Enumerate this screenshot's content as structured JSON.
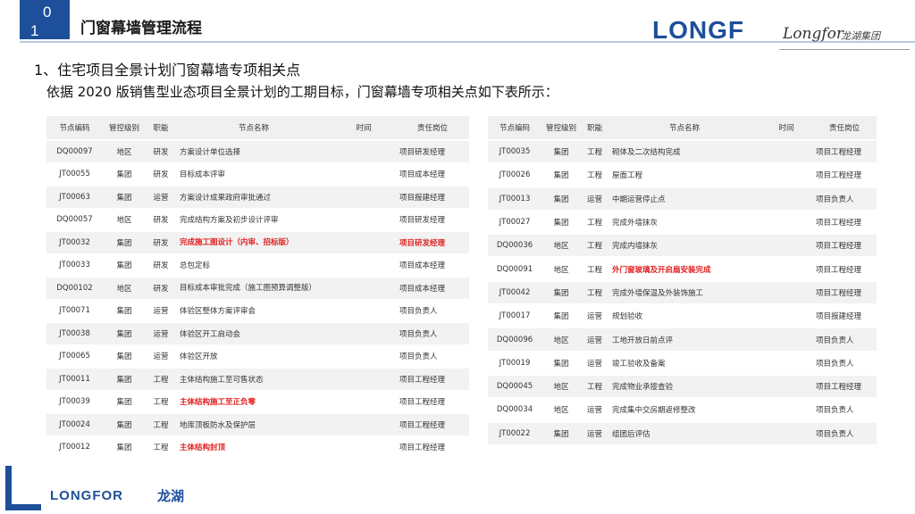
{
  "header": {
    "page_number_line1": "0",
    "page_number_line2": "1",
    "title": "门窗幕墙管理流程",
    "brand": "LONGF",
    "brand_script": "Longfor",
    "brand_cn": "龙湖集团"
  },
  "section_title": "1、住宅项目全景计划门窗幕墙专项相关点",
  "subtitle": "依据 2020 版销售型业态项目全景计划的工期目标，门窗幕墙专项相关点如下表所示：",
  "columns": [
    "节点编码",
    "管控级别",
    "职能",
    "节点名称",
    "时间",
    "责任岗位"
  ],
  "left_rows": [
    {
      "code": "DQ00097",
      "level": "地区",
      "func": "研发",
      "name": "方案设计单位选择",
      "time": "",
      "owner": "项目研发经理",
      "hl": false
    },
    {
      "code": "JT00055",
      "level": "集团",
      "func": "研发",
      "name": "目标成本评审",
      "time": "",
      "owner": "项目成本经理",
      "hl": false
    },
    {
      "code": "JT00063",
      "level": "集团",
      "func": "运营",
      "name": "方案设计成果政府审批通过",
      "time": "",
      "owner": "项目报建经理",
      "hl": false
    },
    {
      "code": "DQ00057",
      "level": "地区",
      "func": "研发",
      "name": "完成结构方案及初步设计评审",
      "time": "",
      "owner": "项目研发经理",
      "hl": false
    },
    {
      "code": "JT00032",
      "level": "集团",
      "func": "研发",
      "name": "完成施工图设计（内审、招标版）",
      "time": "",
      "owner": "项目研发经理",
      "hl": true
    },
    {
      "code": "JT00033",
      "level": "集团",
      "func": "研发",
      "name": "总包定标",
      "time": "",
      "owner": "项目成本经理",
      "hl": false
    },
    {
      "code": "DQ00102",
      "level": "地区",
      "func": "研发",
      "name": "目标成本审批完成（施工图预算调整版）",
      "time": "",
      "owner": "项目成本经理",
      "hl": false
    },
    {
      "code": "JT00071",
      "level": "集团",
      "func": "运营",
      "name": "体验区整体方案评审会",
      "time": "",
      "owner": "项目负责人",
      "hl": false
    },
    {
      "code": "JT00038",
      "level": "集团",
      "func": "运营",
      "name": "体验区开工启动会",
      "time": "",
      "owner": "项目负责人",
      "hl": false
    },
    {
      "code": "JT00065",
      "level": "集团",
      "func": "运营",
      "name": "体验区开放",
      "time": "",
      "owner": "项目负责人",
      "hl": false
    },
    {
      "code": "JT00011",
      "level": "集团",
      "func": "工程",
      "name": "主体结构施工至可售状态",
      "time": "",
      "owner": "项目工程经理",
      "hl": false
    },
    {
      "code": "JT00039",
      "level": "集团",
      "func": "工程",
      "name": "主体结构施工至正负零",
      "time": "",
      "owner": "项目工程经理",
      "hl": true
    },
    {
      "code": "JT00024",
      "level": "集团",
      "func": "工程",
      "name": "地库顶板防水及保护层",
      "time": "",
      "owner": "项目工程经理",
      "hl": false
    },
    {
      "code": "JT00012",
      "level": "集团",
      "func": "工程",
      "name": "主体结构封顶",
      "time": "",
      "owner": "项目工程经理",
      "hl": true
    }
  ],
  "right_rows": [
    {
      "code": "JT00035",
      "level": "集团",
      "func": "工程",
      "name": "砌体及二次结构完成",
      "time": "",
      "owner": "项目工程经理",
      "hl": false
    },
    {
      "code": "JT00026",
      "level": "集团",
      "func": "工程",
      "name": "屋面工程",
      "time": "",
      "owner": "项目工程经理",
      "hl": false
    },
    {
      "code": "JT00013",
      "level": "集团",
      "func": "运营",
      "name": "中期运营停止点",
      "time": "",
      "owner": "项目负责人",
      "hl": false
    },
    {
      "code": "JT00027",
      "level": "集团",
      "func": "工程",
      "name": "完成外墙抹灰",
      "time": "",
      "owner": "项目工程经理",
      "hl": false
    },
    {
      "code": "DQ00036",
      "level": "地区",
      "func": "工程",
      "name": "完成内墙抹灰",
      "time": "",
      "owner": "项目工程经理",
      "hl": false
    },
    {
      "code": "DQ00091",
      "level": "地区",
      "func": "工程",
      "name": "外门窗玻璃及开启扇安装完成",
      "time": "",
      "owner": "项目工程经理",
      "hl": true
    },
    {
      "code": "JT00042",
      "level": "集团",
      "func": "工程",
      "name": "完成外墙保温及外装饰施工",
      "time": "",
      "owner": "项目工程经理",
      "hl": false
    },
    {
      "code": "JT00017",
      "level": "集团",
      "func": "运营",
      "name": "规划验收",
      "time": "",
      "owner": "项目报建经理",
      "hl": false
    },
    {
      "code": "DQ00096",
      "level": "地区",
      "func": "运营",
      "name": "工地开放日前点评",
      "time": "",
      "owner": "项目负责人",
      "hl": false
    },
    {
      "code": "JT00019",
      "level": "集团",
      "func": "运营",
      "name": "竣工验收及备案",
      "time": "",
      "owner": "项目负责人",
      "hl": false
    },
    {
      "code": "DQ00045",
      "level": "地区",
      "func": "工程",
      "name": "完成物业承接查验",
      "time": "",
      "owner": "项目工程经理",
      "hl": false
    },
    {
      "code": "DQ00034",
      "level": "地区",
      "func": "运营",
      "name": "完成集中交房期返修整改",
      "time": "",
      "owner": "项目负责人",
      "hl": false
    },
    {
      "code": "JT00022",
      "level": "集团",
      "func": "运营",
      "name": "组团后评估",
      "time": "",
      "owner": "项目负责人",
      "hl": false
    }
  ],
  "footer": {
    "logo": "LONGFOR",
    "logo_cn": "龙湖"
  },
  "colors": {
    "brand_blue": "#1d4f9a",
    "highlight_red": "#e02020"
  }
}
